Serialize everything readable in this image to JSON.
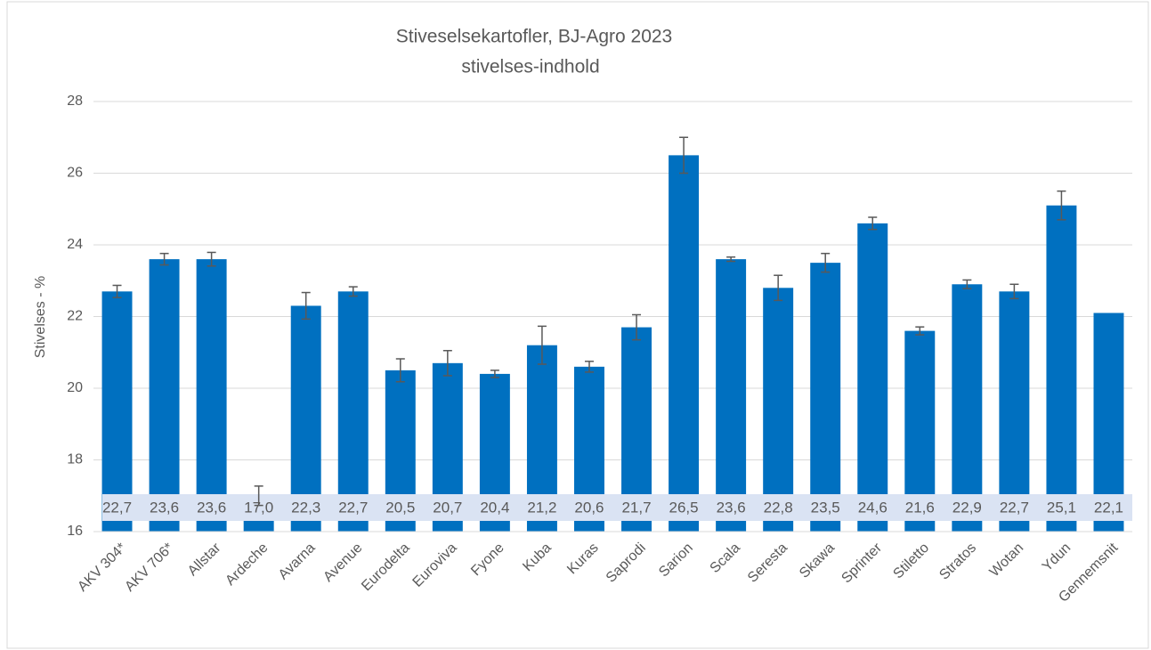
{
  "chart_data": {
    "type": "bar",
    "title": "Stiveselsekartofler, BJ-Agro 2023",
    "subtitle": "stivelses-indhold",
    "y_label": "Stivelses - %",
    "categories": [
      "AKV 304*",
      "AKV 706*",
      "Allstar",
      "Ardeche",
      "Avarna",
      "Avenue",
      "Eurodelta",
      "Euroviva",
      "Fyone",
      "Kuba",
      "Kuras",
      "Saprodi",
      "Sarion",
      "Scala",
      "Seresta",
      "Skawa",
      "Sprinter",
      "Stiletto",
      "Stratos",
      "Wotan",
      "Ydun",
      "Gennemsnit"
    ],
    "values": [
      22.7,
      23.6,
      23.6,
      17.0,
      22.3,
      22.7,
      20.5,
      20.7,
      20.4,
      21.2,
      20.6,
      21.7,
      26.5,
      23.6,
      22.8,
      23.5,
      24.6,
      21.6,
      22.9,
      22.7,
      25.1,
      22.1
    ],
    "value_labels": [
      "22,7",
      "23,6",
      "23,6",
      "17,0",
      "22,3",
      "22,7",
      "20,5",
      "20,7",
      "20,4",
      "21,2",
      "20,6",
      "21,7",
      "26,5",
      "23,6",
      "22,8",
      "23,5",
      "24,6",
      "21,6",
      "22,9",
      "22,7",
      "25,1",
      "22,1"
    ],
    "errors": [
      0.17,
      0.16,
      0.19,
      0.27,
      0.37,
      0.13,
      0.32,
      0.35,
      0.1,
      0.53,
      0.15,
      0.35,
      0.5,
      0.06,
      0.35,
      0.26,
      0.17,
      0.11,
      0.12,
      0.2,
      0.4,
      null
    ],
    "color": "#0070c0",
    "ylim": [
      16,
      28
    ],
    "yticks": [
      16,
      18,
      20,
      22,
      24,
      26,
      28
    ],
    "grid": true
  }
}
